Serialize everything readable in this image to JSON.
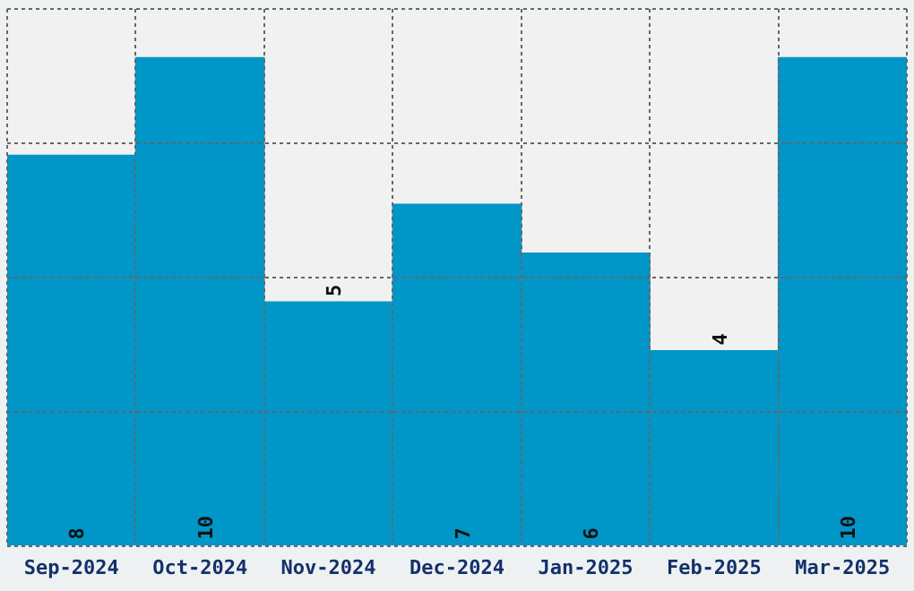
{
  "chart_data": {
    "type": "bar",
    "categories": [
      "Sep-2024",
      "Oct-2024",
      "Nov-2024",
      "Dec-2024",
      "Jan-2025",
      "Feb-2025",
      "Mar-2025"
    ],
    "values": [
      8,
      10,
      5,
      7,
      6,
      4,
      10
    ],
    "color": "#0096c8",
    "ylim": [
      0,
      11
    ],
    "grid": true,
    "tick_labels": "x",
    "data_labels": true,
    "legend": false
  }
}
